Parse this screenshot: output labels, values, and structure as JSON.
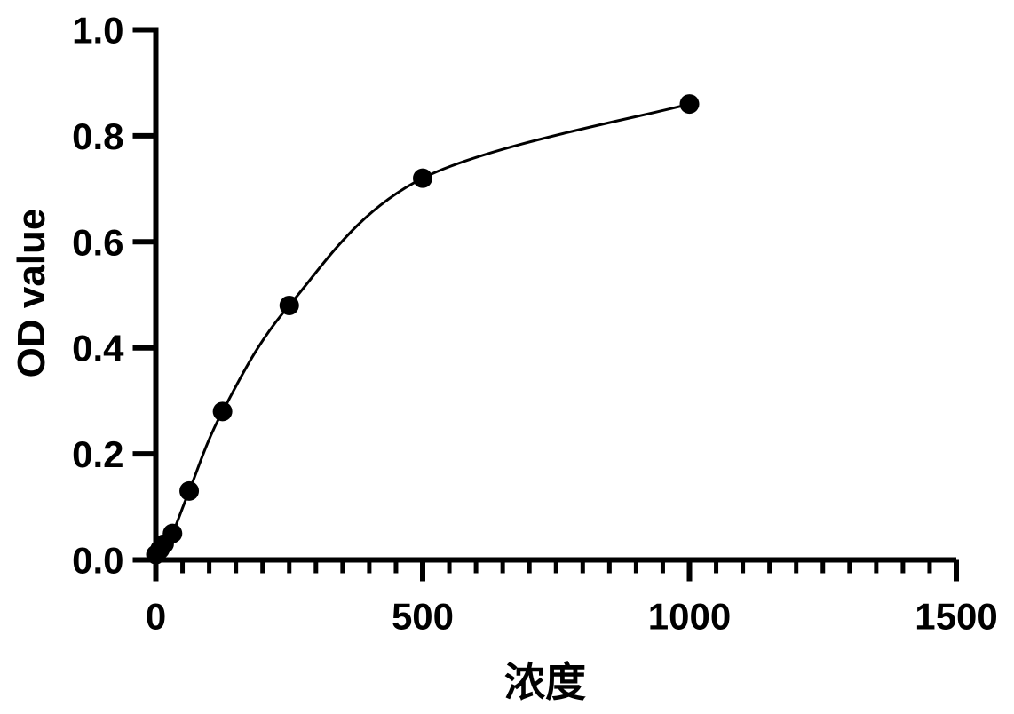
{
  "chart_data": {
    "type": "scatter",
    "title": "",
    "xlabel": "浓度",
    "ylabel": "OD value",
    "x": [
      0,
      7.8,
      15.6,
      31.25,
      62.5,
      125,
      250,
      500,
      1000
    ],
    "y": [
      0.01,
      0.02,
      0.03,
      0.05,
      0.13,
      0.28,
      0.48,
      0.72,
      0.86
    ],
    "xlim": [
      0,
      1500
    ],
    "ylim": [
      0,
      1.0
    ],
    "x_major_ticks": [
      0,
      500,
      1000,
      1500
    ],
    "x_major_tick_labels": [
      "0",
      "500",
      "1000",
      "1500"
    ],
    "x_minor_tick_step": 50,
    "y_tick_labels": [
      "0.0",
      "0.2",
      "0.4",
      "0.6",
      "0.8",
      "1.0"
    ],
    "grid": false,
    "legend": "none",
    "marker_shape": "filled-circle",
    "curve_style": "smooth-fit-through-points",
    "line_color": "#000000",
    "marker_color": "#000000",
    "axis_color": "#000000",
    "background_color": "#ffffff"
  }
}
